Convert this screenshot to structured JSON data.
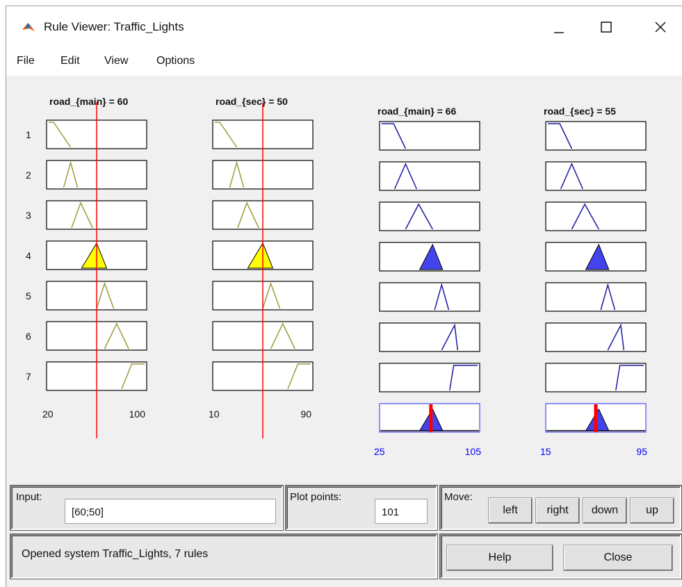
{
  "window": {
    "title": "Rule Viewer: Traffic_Lights"
  },
  "menu": [
    "File",
    "Edit",
    "View",
    "Options"
  ],
  "plot": {
    "rules": [
      "1",
      "2",
      "3",
      "4",
      "5",
      "6",
      "7"
    ],
    "inputs": [
      {
        "label": "road_{main} = 60",
        "min": 20,
        "max": 100,
        "value": 60,
        "range_min_label": "20",
        "range_max_label": "100"
      },
      {
        "label": "road_{sec} = 50",
        "min": 10,
        "max": 90,
        "value": 50,
        "range_min_label": "10",
        "range_max_label": "90"
      }
    ],
    "outputs": [
      {
        "label": "road_{main} = 66",
        "min": 25,
        "max": 105,
        "value": 66,
        "range_min_label": "25",
        "range_max_label": "105"
      },
      {
        "label": "road_{sec} = 55",
        "min": 15,
        "max": 95,
        "value": 55,
        "range_min_label": "15",
        "range_max_label": "95"
      }
    ],
    "colors": {
      "input_mf": "#9c9c3c",
      "input_fill": "#ffff00",
      "output_mf": "#1a1aa0",
      "output_fill": "#4444ee",
      "cursor": "#ff0000",
      "axis_label_blue": "#0000ff"
    }
  },
  "controls": {
    "input_label": "Input:",
    "input_value": "[60;50]",
    "plot_points_label": "Plot points:",
    "plot_points_value": "101",
    "move_label": "Move:",
    "move_buttons": [
      "left",
      "right",
      "down",
      "up"
    ],
    "status": "Opened system Traffic_Lights, 7 rules",
    "help_label": "Help",
    "close_label": "Close"
  }
}
